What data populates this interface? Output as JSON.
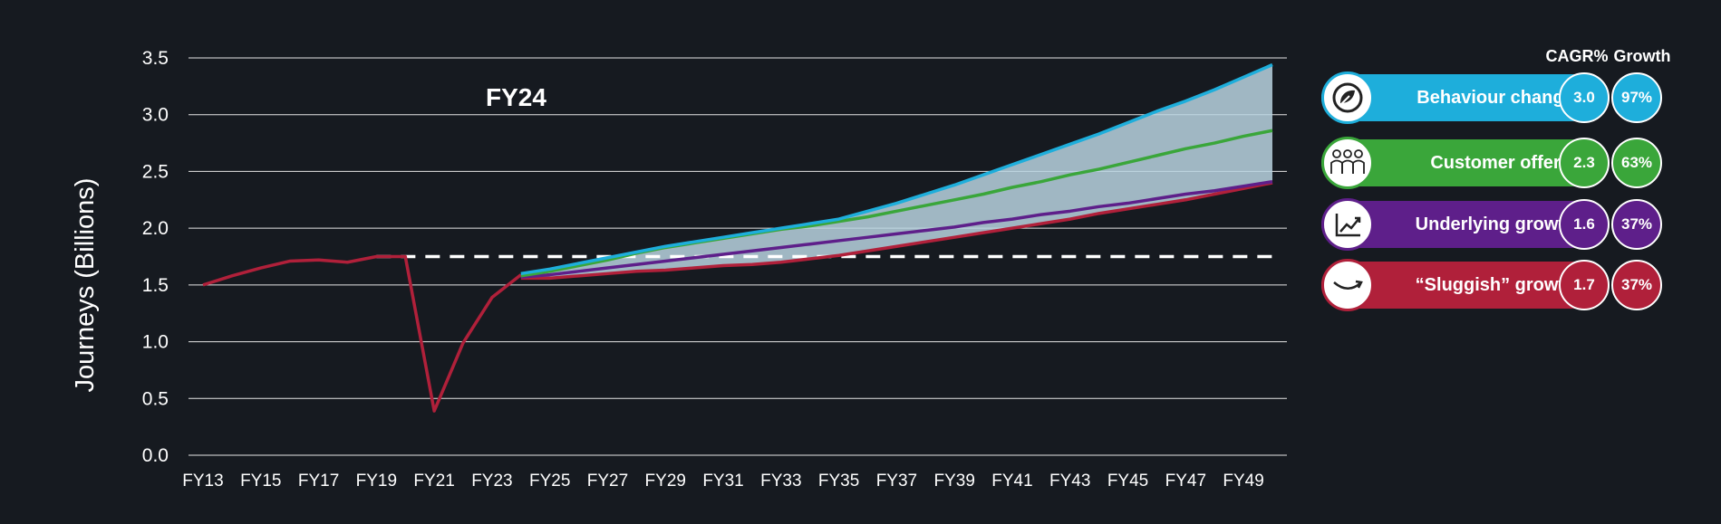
{
  "chart_data": {
    "type": "line",
    "title": "",
    "ylabel": "Journeys (Billions)",
    "xlabel": "",
    "ylim": [
      0,
      3.5
    ],
    "yticks": [
      "0.0",
      "0.5",
      "1.0",
      "1.5",
      "2.0",
      "2.5",
      "3.0",
      "3.5"
    ],
    "x_range": [
      "FY13",
      "FY50"
    ],
    "x_tick_labels": [
      "FY13",
      "FY15",
      "FY17",
      "FY19",
      "FY21",
      "FY23",
      "FY25",
      "FY27",
      "FY29",
      "FY31",
      "FY33",
      "FY35",
      "FY37",
      "FY39",
      "FY41",
      "FY43",
      "FY45",
      "FY47",
      "FY49"
    ],
    "grid": "horizontal",
    "annotation": "FY24",
    "reference_line": {
      "value": 1.75,
      "from": "FY19",
      "to": "FY50",
      "style": "dashed",
      "color": "#ffffff"
    },
    "shaded_band": {
      "upper": "Behaviour change",
      "lower": "“Sluggish” growth",
      "color": "#b9d4e0"
    },
    "history": {
      "x": [
        "FY13",
        "FY14",
        "FY15",
        "FY16",
        "FY17",
        "FY18",
        "FY19",
        "FY20",
        "FY21",
        "FY22",
        "FY23",
        "FY24"
      ],
      "values": [
        1.5,
        1.58,
        1.65,
        1.71,
        1.72,
        1.7,
        1.75,
        1.75,
        0.39,
        0.99,
        1.39,
        1.59
      ],
      "color": "#b0203a"
    },
    "series": [
      {
        "name": "Behaviour change",
        "color": "#1eaedb",
        "x": [
          "FY24",
          "FY25",
          "FY26",
          "FY27",
          "FY28",
          "FY29",
          "FY30",
          "FY31",
          "FY32",
          "FY33",
          "FY34",
          "FY35",
          "FY36",
          "FY37",
          "FY38",
          "FY39",
          "FY40",
          "FY41",
          "FY42",
          "FY43",
          "FY44",
          "FY45",
          "FY46",
          "FY47",
          "FY48",
          "FY49",
          "FY50"
        ],
        "values": [
          1.6,
          1.64,
          1.69,
          1.74,
          1.79,
          1.84,
          1.88,
          1.92,
          1.96,
          2.0,
          2.04,
          2.08,
          2.15,
          2.22,
          2.3,
          2.38,
          2.47,
          2.56,
          2.65,
          2.74,
          2.83,
          2.93,
          3.03,
          3.12,
          3.22,
          3.33,
          3.44
        ]
      },
      {
        "name": "Customer offer",
        "color": "#3aa63a",
        "x": [
          "FY24",
          "FY25",
          "FY26",
          "FY27",
          "FY28",
          "FY29",
          "FY30",
          "FY31",
          "FY32",
          "FY33",
          "FY34",
          "FY35",
          "FY36",
          "FY37",
          "FY38",
          "FY39",
          "FY40",
          "FY41",
          "FY42",
          "FY43",
          "FY44",
          "FY45",
          "FY46",
          "FY47",
          "FY48",
          "FY49",
          "FY50"
        ],
        "values": [
          1.58,
          1.62,
          1.67,
          1.72,
          1.78,
          1.83,
          1.87,
          1.91,
          1.95,
          1.99,
          2.02,
          2.06,
          2.1,
          2.15,
          2.2,
          2.25,
          2.3,
          2.36,
          2.41,
          2.47,
          2.52,
          2.58,
          2.64,
          2.7,
          2.75,
          2.81,
          2.86
        ]
      },
      {
        "name": "Underlying growth",
        "color": "#5e1f8a",
        "x": [
          "FY24",
          "FY25",
          "FY26",
          "FY27",
          "FY28",
          "FY29",
          "FY30",
          "FY31",
          "FY32",
          "FY33",
          "FY34",
          "FY35",
          "FY36",
          "FY37",
          "FY38",
          "FY39",
          "FY40",
          "FY41",
          "FY42",
          "FY43",
          "FY44",
          "FY45",
          "FY46",
          "FY47",
          "FY48",
          "FY49",
          "FY50"
        ],
        "values": [
          1.57,
          1.59,
          1.62,
          1.65,
          1.68,
          1.71,
          1.74,
          1.77,
          1.8,
          1.83,
          1.86,
          1.89,
          1.92,
          1.95,
          1.98,
          2.01,
          2.05,
          2.08,
          2.12,
          2.15,
          2.19,
          2.22,
          2.26,
          2.3,
          2.33,
          2.37,
          2.41
        ]
      },
      {
        "name": "“Sluggish” growth",
        "color": "#b0203a",
        "x": [
          "FY24",
          "FY25",
          "FY26",
          "FY27",
          "FY28",
          "FY29",
          "FY30",
          "FY31",
          "FY32",
          "FY33",
          "FY34",
          "FY35",
          "FY36",
          "FY37",
          "FY38",
          "FY39",
          "FY40",
          "FY41",
          "FY42",
          "FY43",
          "FY44",
          "FY45",
          "FY46",
          "FY47",
          "FY48",
          "FY49",
          "FY50"
        ],
        "values": [
          1.56,
          1.56,
          1.58,
          1.6,
          1.62,
          1.63,
          1.65,
          1.67,
          1.68,
          1.7,
          1.73,
          1.76,
          1.8,
          1.84,
          1.88,
          1.92,
          1.96,
          2.0,
          2.04,
          2.08,
          2.13,
          2.17,
          2.21,
          2.25,
          2.3,
          2.35,
          2.4
        ]
      }
    ]
  },
  "legend": {
    "header_cagr": "CAGR%",
    "header_growth": "Growth",
    "items": [
      {
        "label": "Behaviour change",
        "color": "#1eaedb",
        "icon": "leaf-recycle-icon",
        "cagr": "3.0",
        "growth": "97%"
      },
      {
        "label": "Customer offer",
        "color": "#3aa63a",
        "icon": "people-group-icon",
        "cagr": "2.3",
        "growth": "63%"
      },
      {
        "label": "Underlying growth",
        "color": "#5e1f8a",
        "icon": "line-chart-icon",
        "cagr": "1.6",
        "growth": "37%"
      },
      {
        "label": "“Sluggish” growth",
        "color": "#b0203a",
        "icon": "curved-arrow-icon",
        "cagr": "1.7",
        "growth": "37%"
      }
    ]
  }
}
